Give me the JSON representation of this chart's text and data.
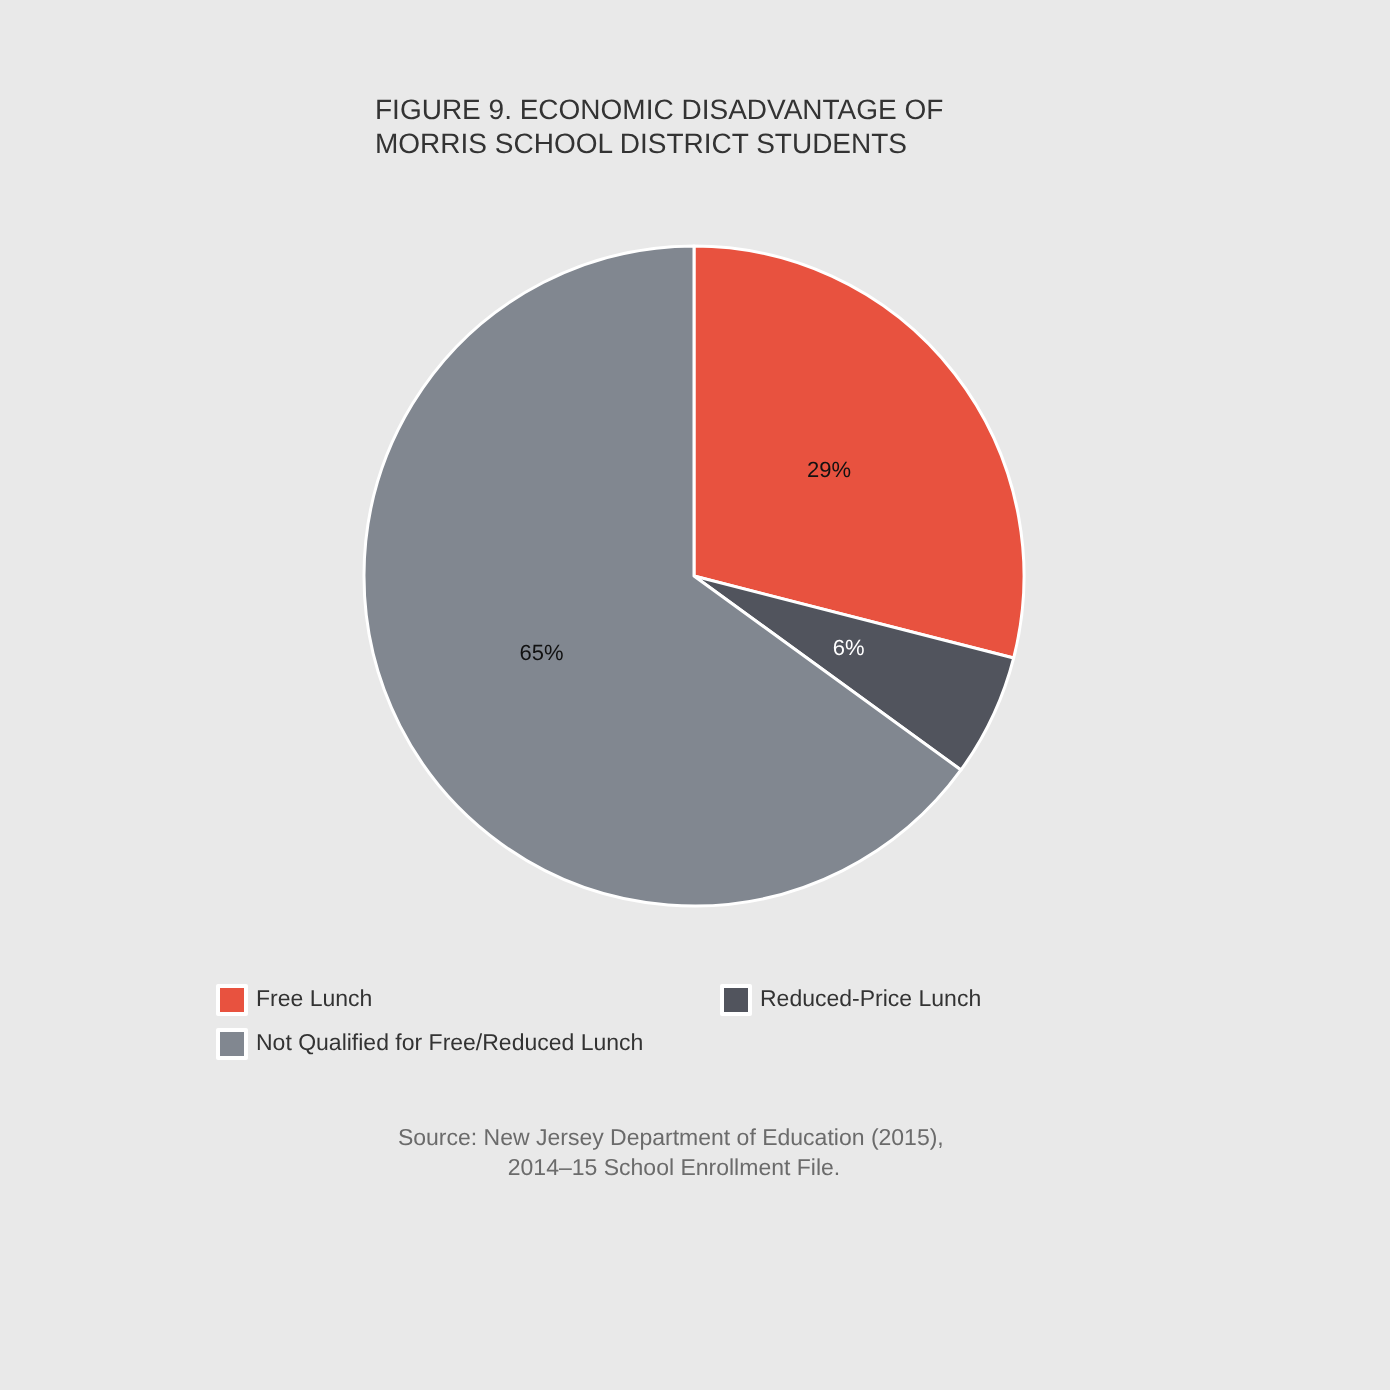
{
  "chart_data": {
    "type": "pie",
    "title": "FIGURE 9. ECONOMIC DISADVANTAGE OF MORRIS SCHOOL DISTRICT STUDENTS",
    "categories": [
      "Free Lunch",
      "Reduced-Price Lunch",
      "Not Qualified for Free/Reduced Lunch"
    ],
    "values": [
      29,
      6,
      65
    ],
    "value_labels": [
      "29%",
      "6%",
      "65%"
    ],
    "colors": [
      "#e8523f",
      "#51545d",
      "#818790"
    ],
    "legend": "bottom",
    "annotations": [
      "Source: New Jersey Department of Education (2015), 2014–15 School Enrollment File."
    ]
  }
}
